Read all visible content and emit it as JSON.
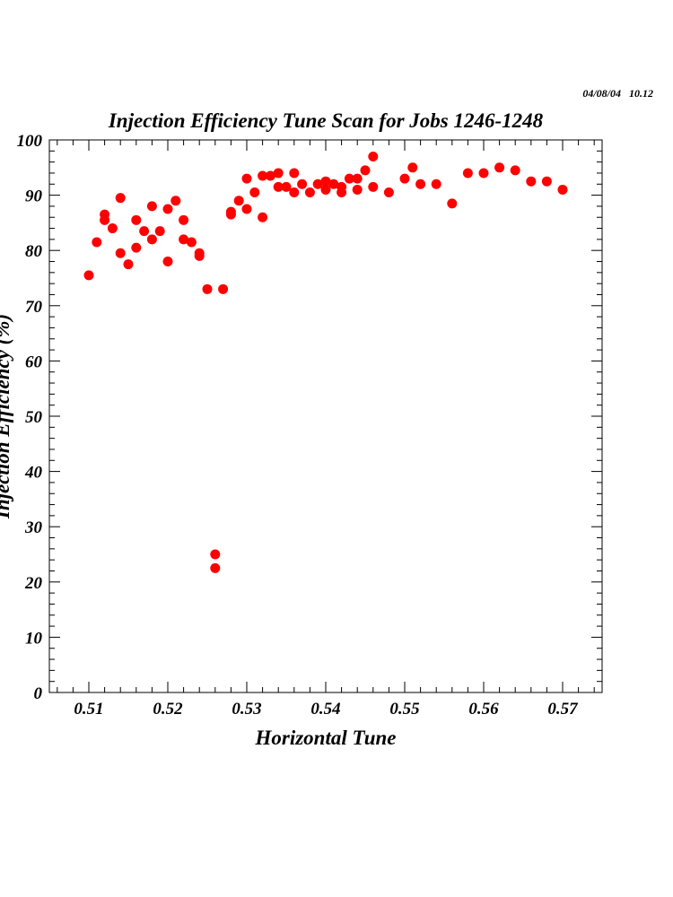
{
  "chart_data": {
    "type": "scatter",
    "title": "Injection Efficiency Tune Scan for Jobs 1246-1248",
    "timestamp": "04/08/04   10.12",
    "xlabel": "Horizontal Tune",
    "ylabel": "Injection Efficiency (%)",
    "xlim": [
      0.505,
      0.575
    ],
    "ylim": [
      0,
      100
    ],
    "xticks": [
      "0.51",
      "0.52",
      "0.53",
      "0.54",
      "0.55",
      "0.56",
      "0.57"
    ],
    "yticks": [
      "0",
      "10",
      "20",
      "30",
      "40",
      "50",
      "60",
      "70",
      "80",
      "90",
      "100"
    ],
    "grid": false,
    "marker_color": "#ff0000",
    "points": [
      [
        0.51,
        75.5
      ],
      [
        0.511,
        81.5
      ],
      [
        0.512,
        86.5
      ],
      [
        0.512,
        85.5
      ],
      [
        0.513,
        84
      ],
      [
        0.514,
        89.5
      ],
      [
        0.514,
        79.5
      ],
      [
        0.515,
        77.5
      ],
      [
        0.516,
        85.5
      ],
      [
        0.516,
        80.5
      ],
      [
        0.517,
        83.5
      ],
      [
        0.518,
        88
      ],
      [
        0.518,
        82
      ],
      [
        0.519,
        83.5
      ],
      [
        0.52,
        87.5
      ],
      [
        0.52,
        78
      ],
      [
        0.521,
        89
      ],
      [
        0.522,
        85.5
      ],
      [
        0.522,
        82
      ],
      [
        0.523,
        81.5
      ],
      [
        0.524,
        79.5
      ],
      [
        0.524,
        79
      ],
      [
        0.525,
        73
      ],
      [
        0.526,
        25
      ],
      [
        0.526,
        22.5
      ],
      [
        0.527,
        73
      ],
      [
        0.528,
        87
      ],
      [
        0.528,
        86.5
      ],
      [
        0.529,
        89
      ],
      [
        0.53,
        93
      ],
      [
        0.53,
        87.5
      ],
      [
        0.531,
        90.5
      ],
      [
        0.532,
        93.5
      ],
      [
        0.532,
        86
      ],
      [
        0.533,
        93.5
      ],
      [
        0.534,
        94
      ],
      [
        0.534,
        91.5
      ],
      [
        0.535,
        91.5
      ],
      [
        0.536,
        94
      ],
      [
        0.536,
        90.5
      ],
      [
        0.537,
        92
      ],
      [
        0.538,
        90.5
      ],
      [
        0.539,
        92
      ],
      [
        0.54,
        92.5
      ],
      [
        0.54,
        91
      ],
      [
        0.541,
        92
      ],
      [
        0.542,
        91.5
      ],
      [
        0.542,
        90.5
      ],
      [
        0.543,
        93
      ],
      [
        0.544,
        93
      ],
      [
        0.544,
        91
      ],
      [
        0.545,
        94.5
      ],
      [
        0.546,
        97
      ],
      [
        0.546,
        91.5
      ],
      [
        0.548,
        90.5
      ],
      [
        0.55,
        93
      ],
      [
        0.551,
        95
      ],
      [
        0.552,
        92
      ],
      [
        0.554,
        92
      ],
      [
        0.556,
        88.5
      ],
      [
        0.558,
        94
      ],
      [
        0.56,
        94
      ],
      [
        0.562,
        95
      ],
      [
        0.564,
        94.5
      ],
      [
        0.566,
        92.5
      ],
      [
        0.568,
        92.5
      ],
      [
        0.57,
        91
      ]
    ]
  }
}
